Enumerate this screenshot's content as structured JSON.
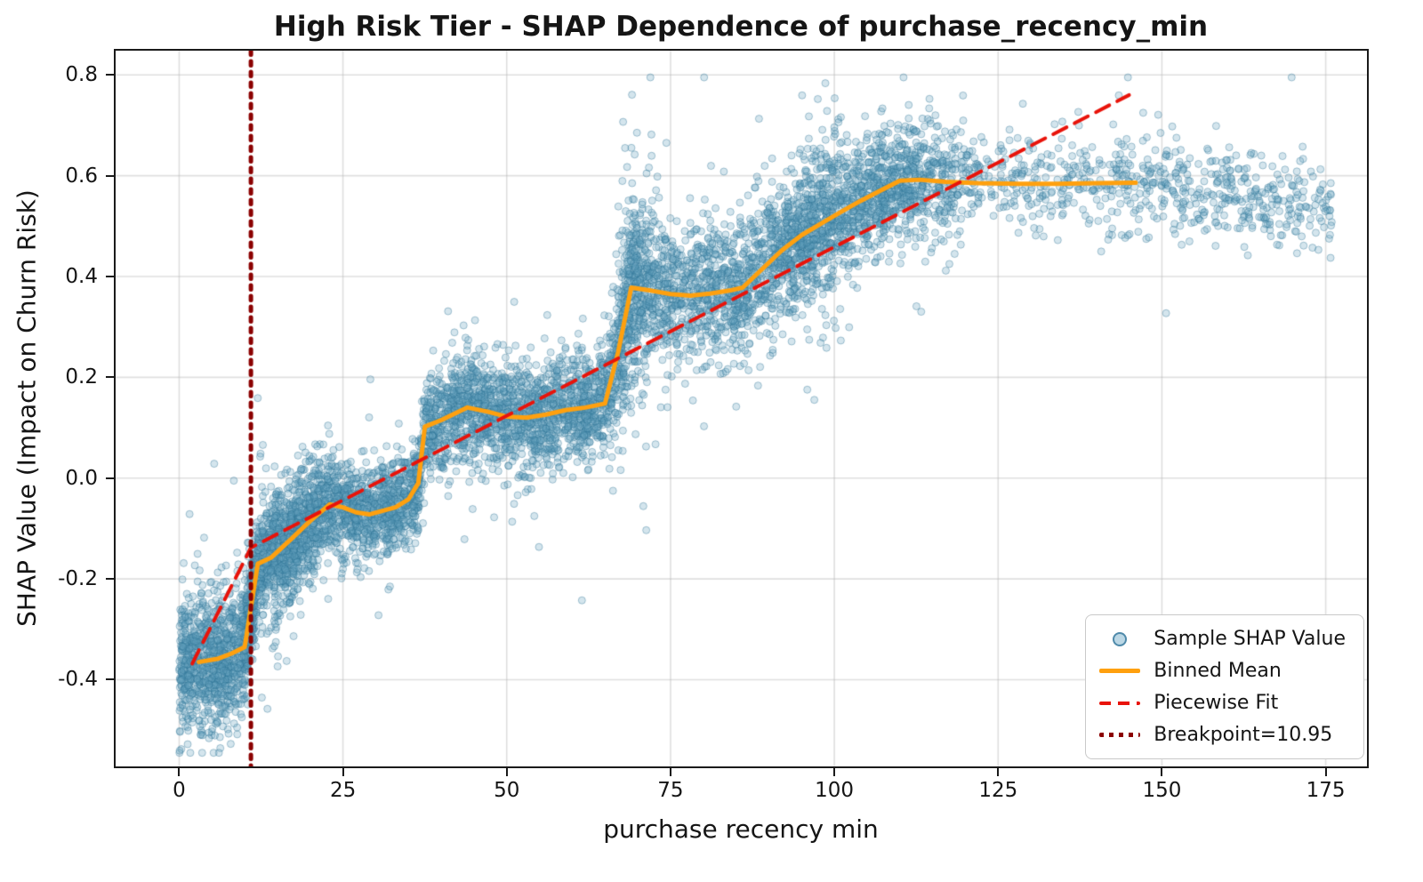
{
  "chart_data": {
    "type": "scatter",
    "title": "High Risk Tier - SHAP Dependence of purchase_recency_min",
    "xlabel": "purchase recency min",
    "ylabel": "SHAP Value (Impact on Churn Risk)",
    "xlim": [
      -9.7,
      181.3
    ],
    "ylim": [
      -0.572,
      0.848
    ],
    "x_ticks": [
      0,
      25,
      50,
      75,
      100,
      125,
      150,
      175
    ],
    "y_ticks": [
      -0.4,
      -0.2,
      0.0,
      0.2,
      0.4,
      0.6,
      0.8
    ],
    "grid": true,
    "legend_position": "lower right",
    "colors": {
      "scatter_fill": "rgba(100,160,190,0.28)",
      "scatter_edge": "rgba(40,110,145,0.38)",
      "binned_mean": "#ffa00e",
      "piecewise_fit": "#e8130a",
      "breakpoint": "#8b0000",
      "grid": "rgba(176,176,176,0.4)",
      "legend_scatter_fill": "rgba(120,175,203,0.5)",
      "legend_scatter_edge": "rgba(52,120,156,0.8)"
    },
    "binned_mean": {
      "name": "Binned Mean",
      "points": [
        [
          3,
          -0.365
        ],
        [
          6,
          -0.358
        ],
        [
          8,
          -0.348
        ],
        [
          10,
          -0.335
        ],
        [
          12,
          -0.17
        ],
        [
          14,
          -0.158
        ],
        [
          17,
          -0.122
        ],
        [
          20,
          -0.085
        ],
        [
          23,
          -0.052
        ],
        [
          25,
          -0.058
        ],
        [
          27,
          -0.068
        ],
        [
          29,
          -0.072
        ],
        [
          31,
          -0.065
        ],
        [
          33,
          -0.058
        ],
        [
          35,
          -0.042
        ],
        [
          36.5,
          -0.01
        ],
        [
          37.5,
          0.102
        ],
        [
          40,
          0.115
        ],
        [
          44,
          0.14
        ],
        [
          47,
          0.132
        ],
        [
          50,
          0.122
        ],
        [
          53,
          0.12
        ],
        [
          56,
          0.126
        ],
        [
          59,
          0.135
        ],
        [
          62,
          0.14
        ],
        [
          65,
          0.148
        ],
        [
          67,
          0.25
        ],
        [
          69,
          0.378
        ],
        [
          72,
          0.372
        ],
        [
          75,
          0.365
        ],
        [
          78,
          0.362
        ],
        [
          81,
          0.366
        ],
        [
          84,
          0.372
        ],
        [
          86,
          0.378
        ],
        [
          89,
          0.415
        ],
        [
          92,
          0.452
        ],
        [
          95,
          0.482
        ],
        [
          98,
          0.505
        ],
        [
          101,
          0.528
        ],
        [
          104,
          0.55
        ],
        [
          107,
          0.57
        ],
        [
          110,
          0.59
        ],
        [
          113,
          0.592
        ],
        [
          117,
          0.588
        ],
        [
          122,
          0.585
        ],
        [
          128,
          0.584
        ],
        [
          134,
          0.584
        ],
        [
          140,
          0.585
        ],
        [
          146,
          0.586
        ]
      ]
    },
    "piecewise_fit": {
      "name": "Piecewise Fit",
      "points": [
        [
          2,
          -0.368
        ],
        [
          10.95,
          -0.138
        ],
        [
          145,
          0.76
        ]
      ]
    },
    "breakpoint": {
      "name": "Breakpoint=10.95",
      "x": 10.95
    },
    "scatter": {
      "name": "Sample SHAP Value",
      "n_points": 9000,
      "seed": 42,
      "marker_radius": 4,
      "x_range": [
        0,
        176
      ],
      "tail_start": 146,
      "tail_slope": -0.002,
      "outlier_frac": 0.05,
      "outlier_mult": 2.2,
      "y_clamp": [
        -0.545,
        0.795
      ],
      "x_mixture": [
        {
          "type": "uniform",
          "a": 0,
          "b": 11.5,
          "w": 0.125
        },
        {
          "type": "uniform",
          "a": 10,
          "b": 23,
          "w": 0.125
        },
        {
          "type": "normal",
          "mu": 16,
          "sd": 2.5,
          "w": 0.02,
          "ysd": 0.085
        },
        {
          "type": "uniform",
          "a": 23,
          "b": 37,
          "w": 0.105
        },
        {
          "type": "uniform",
          "a": 37,
          "b": 67,
          "w": 0.205
        },
        {
          "type": "normal",
          "mu": 69,
          "sd": 1.6,
          "w": 0.025,
          "ysd": 0.12
        },
        {
          "type": "uniform",
          "a": 67,
          "b": 97,
          "w": 0.175
        },
        {
          "type": "normal",
          "mu": 99,
          "sd": 1.4,
          "w": 0.02,
          "ysd": 0.1
        },
        {
          "type": "normal",
          "mu": 107,
          "sd": 7,
          "w": 0.1
        },
        {
          "type": "uniform",
          "a": 97,
          "b": 145,
          "w": 0.06
        },
        {
          "type": "uniform",
          "a": 145,
          "b": 176,
          "w": 0.04
        }
      ],
      "noise_zones": [
        {
          "max": 11,
          "sd": 0.062
        },
        {
          "max": 23,
          "sd": 0.052
        },
        {
          "max": 37,
          "sd": 0.045
        },
        {
          "max": 66,
          "sd": 0.052
        },
        {
          "max": 76,
          "sd": 0.08
        },
        {
          "max": 97,
          "sd": 0.068
        },
        {
          "max": 120,
          "sd": 0.055
        },
        {
          "max": 999,
          "sd": 0.05
        }
      ]
    }
  },
  "legend": {
    "entries": [
      {
        "label": "Sample SHAP Value",
        "marker": "scatter"
      },
      {
        "label": "Binned Mean",
        "marker": "line-solid"
      },
      {
        "label": "Piecewise Fit",
        "marker": "line-dashed"
      },
      {
        "label": "Breakpoint=10.95",
        "marker": "line-dotted"
      }
    ]
  }
}
